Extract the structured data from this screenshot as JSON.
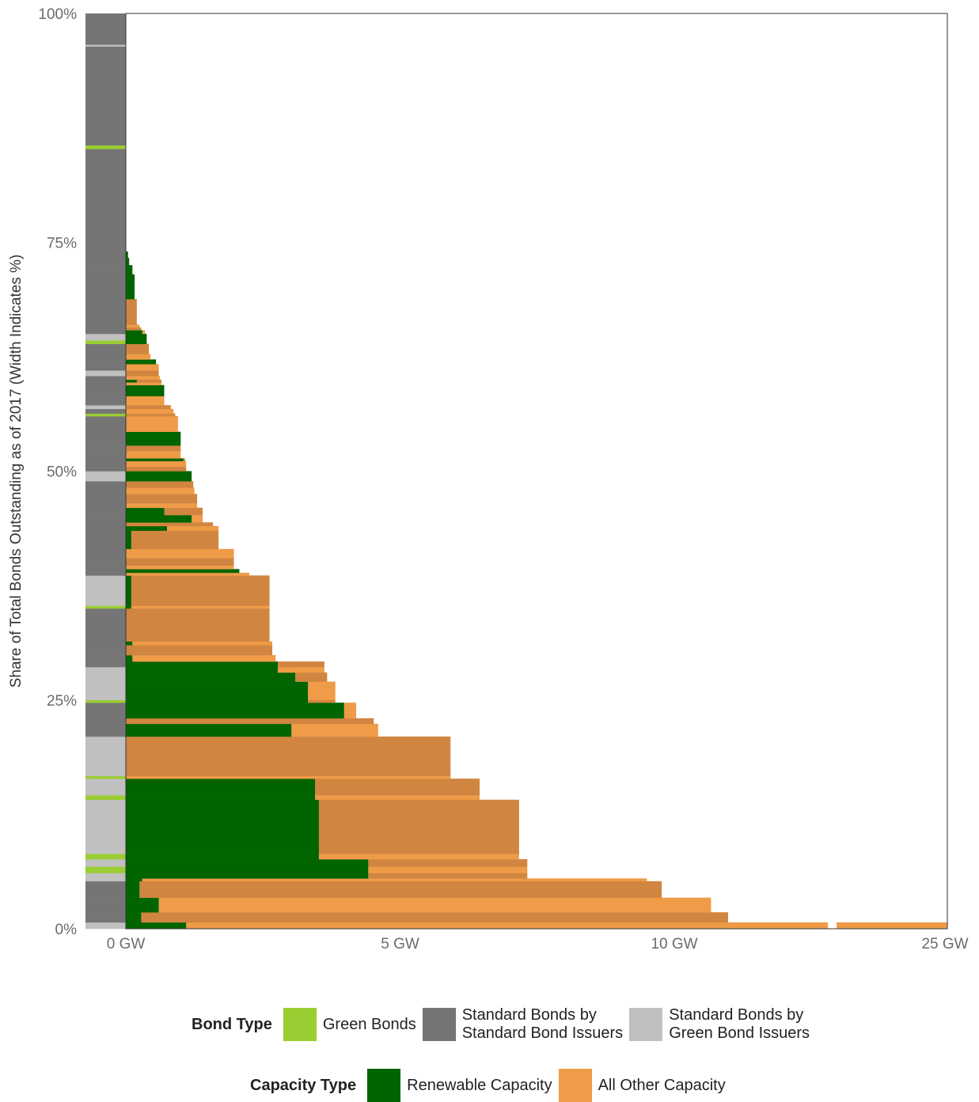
{
  "chart_data": {
    "type": "bar",
    "ylabel": "Share of Total Bonds Outstanding as of 2017 (Width Indicates %)",
    "xlabel": "",
    "x_ticks": [
      "0 GW",
      "5 GW",
      "10 GW",
      "25 GW"
    ],
    "x_tick_values": [
      0,
      5,
      10,
      25
    ],
    "x_axis_break": {
      "from": 12.8,
      "to": 25
    },
    "y_ticks": [
      "100%",
      "75%",
      "50%",
      "25%",
      "0%"
    ],
    "y_tick_values": [
      100,
      75,
      50,
      25,
      0
    ],
    "xlim": [
      0,
      25
    ],
    "ylim": [
      0,
      100
    ],
    "legends": [
      {
        "title": "Bond Type",
        "entries": [
          {
            "label": "Green Bonds",
            "color": "#9acd32"
          },
          {
            "label": "Standard Bonds by\nStandard Bond Issuers",
            "color": "#757575"
          },
          {
            "label": "Standard Bonds by\nGreen Bond Issuers",
            "color": "#c0c0c0"
          }
        ]
      },
      {
        "title": "Capacity Type",
        "entries": [
          {
            "label": "Renewable Capacity",
            "color": "#006400"
          },
          {
            "label": "All Other Capacity",
            "color": "#ef9b48"
          }
        ]
      }
    ],
    "colors": {
      "green_bond": "#9acd32",
      "standard_std": "#757575",
      "standard_green": "#c0c0c0",
      "renewable": "#006400",
      "other": "#ef9b48",
      "other_alt": "#d08540"
    },
    "issuers": [
      {
        "y0": 0.0,
        "y1": 0.7,
        "bond": "green_issuer",
        "renewable": 1.1,
        "total": 25.0
      },
      {
        "y0": 0.7,
        "y1": 1.8,
        "bond": "standard",
        "renewable": 0.28,
        "total": 10.98
      },
      {
        "y0": 1.8,
        "y1": 3.4,
        "bond": "standard",
        "renewable": 0.6,
        "total": 10.67
      },
      {
        "y0": 3.4,
        "y1": 5.2,
        "bond": "standard",
        "renewable": 0.25,
        "total": 9.77
      },
      {
        "y0": 5.2,
        "y1": 5.5,
        "bond": "green_issuer",
        "renewable": 0.3,
        "total": 9.5
      },
      {
        "y0": 5.5,
        "y1": 6.1,
        "bond": "green_issuer",
        "renewable": 4.42,
        "total": 7.32
      },
      {
        "y0": 6.1,
        "y1": 6.8,
        "bond": "green",
        "renewable": 4.42,
        "total": 7.32
      },
      {
        "y0": 6.8,
        "y1": 7.6,
        "bond": "green_issuer",
        "renewable": 4.42,
        "total": 7.32
      },
      {
        "y0": 7.6,
        "y1": 8.2,
        "bond": "green",
        "renewable": 3.52,
        "total": 7.17
      },
      {
        "y0": 8.2,
        "y1": 14.1,
        "bond": "green_issuer",
        "renewable": 3.52,
        "total": 7.17
      },
      {
        "y0": 14.1,
        "y1": 14.6,
        "bond": "green",
        "renewable": 3.45,
        "total": 6.45
      },
      {
        "y0": 14.6,
        "y1": 16.4,
        "bond": "green_issuer",
        "renewable": 3.45,
        "total": 6.45
      },
      {
        "y0": 16.4,
        "y1": 16.7,
        "bond": "green",
        "renewable": 0.0,
        "total": 5.92
      },
      {
        "y0": 16.7,
        "y1": 21.0,
        "bond": "green_issuer",
        "renewable": 0.0,
        "total": 5.92
      },
      {
        "y0": 21.0,
        "y1": 22.4,
        "bond": "standard",
        "renewable": 3.02,
        "total": 4.6
      },
      {
        "y0": 22.4,
        "y1": 23.0,
        "bond": "standard",
        "renewable": 0.0,
        "total": 4.52
      },
      {
        "y0": 23.0,
        "y1": 24.7,
        "bond": "standard",
        "renewable": 3.98,
        "total": 4.2
      },
      {
        "y0": 24.7,
        "y1": 25.0,
        "bond": "green",
        "renewable": 3.32,
        "total": 3.82
      },
      {
        "y0": 25.0,
        "y1": 27.0,
        "bond": "green_issuer",
        "renewable": 3.32,
        "total": 3.82
      },
      {
        "y0": 27.0,
        "y1": 28.0,
        "bond": "green_issuer",
        "renewable": 3.09,
        "total": 3.67
      },
      {
        "y0": 28.0,
        "y1": 28.6,
        "bond": "green_issuer",
        "renewable": 2.77,
        "total": 3.62
      },
      {
        "y0": 28.6,
        "y1": 29.2,
        "bond": "standard",
        "renewable": 2.77,
        "total": 3.62
      },
      {
        "y0": 29.2,
        "y1": 29.9,
        "bond": "standard",
        "renewable": 0.12,
        "total": 2.73
      },
      {
        "y0": 29.9,
        "y1": 31.0,
        "bond": "standard",
        "renewable": 0.0,
        "total": 2.67
      },
      {
        "y0": 31.0,
        "y1": 31.4,
        "bond": "standard",
        "renewable": 0.12,
        "total": 2.67
      },
      {
        "y0": 31.4,
        "y1": 35.0,
        "bond": "standard",
        "renewable": 0.0,
        "total": 2.62
      },
      {
        "y0": 35.0,
        "y1": 35.3,
        "bond": "green",
        "renewable": 0.1,
        "total": 2.62
      },
      {
        "y0": 35.3,
        "y1": 38.6,
        "bond": "green_issuer",
        "renewable": 0.1,
        "total": 2.62
      },
      {
        "y0": 38.6,
        "y1": 38.9,
        "bond": "standard",
        "renewable": 0.0,
        "total": 2.25
      },
      {
        "y0": 38.9,
        "y1": 39.3,
        "bond": "standard",
        "renewable": 2.07,
        "total": 2.07
      },
      {
        "y0": 39.3,
        "y1": 39.7,
        "bond": "standard",
        "renewable": 0.0,
        "total": 1.97
      },
      {
        "y0": 39.7,
        "y1": 40.5,
        "bond": "standard",
        "renewable": 0.0,
        "total": 1.97
      },
      {
        "y0": 40.5,
        "y1": 41.5,
        "bond": "standard",
        "renewable": 0.0,
        "total": 1.97
      },
      {
        "y0": 41.5,
        "y1": 43.5,
        "bond": "standard",
        "renewable": 0.1,
        "total": 1.69
      },
      {
        "y0": 43.5,
        "y1": 44.0,
        "bond": "standard",
        "renewable": 0.75,
        "total": 1.69
      },
      {
        "y0": 44.0,
        "y1": 44.4,
        "bond": "standard",
        "renewable": 0.0,
        "total": 1.59
      },
      {
        "y0": 44.4,
        "y1": 45.2,
        "bond": "standard",
        "renewable": 1.2,
        "total": 1.4
      },
      {
        "y0": 45.2,
        "y1": 46.0,
        "bond": "standard",
        "renewable": 0.7,
        "total": 1.4
      },
      {
        "y0": 46.0,
        "y1": 46.5,
        "bond": "standard",
        "renewable": 0.0,
        "total": 1.3
      },
      {
        "y0": 46.5,
        "y1": 47.5,
        "bond": "standard",
        "renewable": 0.0,
        "total": 1.3
      },
      {
        "y0": 47.5,
        "y1": 48.2,
        "bond": "standard",
        "renewable": 0.0,
        "total": 1.25
      },
      {
        "y0": 48.2,
        "y1": 48.9,
        "bond": "standard",
        "renewable": 0.0,
        "total": 1.23
      },
      {
        "y0": 48.9,
        "y1": 50.0,
        "bond": "green_issuer",
        "renewable": 1.2,
        "total": 1.2
      },
      {
        "y0": 50.0,
        "y1": 50.5,
        "bond": "standard",
        "renewable": 0.0,
        "total": 1.1
      },
      {
        "y0": 50.5,
        "y1": 51.1,
        "bond": "standard",
        "renewable": 0.0,
        "total": 1.1
      },
      {
        "y0": 51.1,
        "y1": 51.4,
        "bond": "standard",
        "renewable": 1.05,
        "total": 1.08
      },
      {
        "y0": 51.4,
        "y1": 52.2,
        "bond": "standard",
        "renewable": 0.0,
        "total": 1.0
      },
      {
        "y0": 52.2,
        "y1": 52.8,
        "bond": "standard",
        "renewable": 0.0,
        "total": 1.0
      },
      {
        "y0": 52.8,
        "y1": 53.3,
        "bond": "standard",
        "renewable": 1.0,
        "total": 1.0
      },
      {
        "y0": 53.3,
        "y1": 54.3,
        "bond": "standard",
        "renewable": 1.0,
        "total": 1.0
      },
      {
        "y0": 54.3,
        "y1": 56.0,
        "bond": "standard",
        "renewable": 0.0,
        "total": 0.95
      },
      {
        "y0": 56.0,
        "y1": 56.3,
        "bond": "green",
        "renewable": 0.0,
        "total": 0.9
      },
      {
        "y0": 56.3,
        "y1": 56.8,
        "bond": "standard",
        "renewable": 0.0,
        "total": 0.87
      },
      {
        "y0": 56.8,
        "y1": 57.2,
        "bond": "green_issuer",
        "renewable": 0.0,
        "total": 0.82
      },
      {
        "y0": 57.2,
        "y1": 58.2,
        "bond": "standard",
        "renewable": 0.0,
        "total": 0.7
      },
      {
        "y0": 58.2,
        "y1": 59.4,
        "bond": "standard",
        "renewable": 0.7,
        "total": 0.7
      },
      {
        "y0": 59.4,
        "y1": 59.7,
        "bond": "standard",
        "renewable": 0.0,
        "total": 0.65
      },
      {
        "y0": 59.7,
        "y1": 60.0,
        "bond": "standard",
        "renewable": 0.2,
        "total": 0.65
      },
      {
        "y0": 60.0,
        "y1": 60.4,
        "bond": "standard",
        "renewable": 0.0,
        "total": 0.62
      },
      {
        "y0": 60.4,
        "y1": 61.0,
        "bond": "green_issuer",
        "renewable": 0.0,
        "total": 0.6
      },
      {
        "y0": 61.0,
        "y1": 61.7,
        "bond": "standard",
        "renewable": 0.0,
        "total": 0.6
      },
      {
        "y0": 61.7,
        "y1": 62.2,
        "bond": "standard",
        "renewable": 0.55,
        "total": 0.55
      },
      {
        "y0": 62.2,
        "y1": 62.8,
        "bond": "standard",
        "renewable": 0.0,
        "total": 0.45
      },
      {
        "y0": 62.8,
        "y1": 63.9,
        "bond": "standard",
        "renewable": 0.0,
        "total": 0.42
      },
      {
        "y0": 63.9,
        "y1": 64.3,
        "bond": "green",
        "renewable": 0.38,
        "total": 0.38
      },
      {
        "y0": 64.3,
        "y1": 65.0,
        "bond": "green_issuer",
        "renewable": 0.38,
        "total": 0.38
      },
      {
        "y0": 65.0,
        "y1": 65.4,
        "bond": "standard",
        "renewable": 0.3,
        "total": 0.35
      },
      {
        "y0": 65.4,
        "y1": 65.7,
        "bond": "standard",
        "renewable": 0.0,
        "total": 0.28
      },
      {
        "y0": 65.7,
        "y1": 66.0,
        "bond": "standard",
        "renewable": 0.0,
        "total": 0.25
      },
      {
        "y0": 66.0,
        "y1": 68.8,
        "bond": "standard",
        "renewable": 0.0,
        "total": 0.2
      },
      {
        "y0": 68.8,
        "y1": 71.5,
        "bond": "standard",
        "renewable": 0.16,
        "total": 0.16
      },
      {
        "y0": 71.5,
        "y1": 72.5,
        "bond": "standard",
        "renewable": 0.12,
        "total": 0.12
      },
      {
        "y0": 72.5,
        "y1": 73.3,
        "bond": "standard",
        "renewable": 0.06,
        "total": 0.06
      },
      {
        "y0": 73.3,
        "y1": 74.0,
        "bond": "standard",
        "renewable": 0.04,
        "total": 0.04
      },
      {
        "y0": 74.0,
        "y1": 85.2,
        "bond": "standard",
        "renewable": 0.0,
        "total": 0.0
      },
      {
        "y0": 85.2,
        "y1": 85.6,
        "bond": "green",
        "renewable": 0.0,
        "total": 0.0
      },
      {
        "y0": 85.6,
        "y1": 96.4,
        "bond": "standard",
        "renewable": 0.0,
        "total": 0.0
      },
      {
        "y0": 96.4,
        "y1": 96.6,
        "bond": "green_issuer",
        "renewable": 0.0,
        "total": 0.0
      },
      {
        "y0": 96.6,
        "y1": 100.0,
        "bond": "standard",
        "renewable": 0.0,
        "total": 0.0
      }
    ]
  }
}
